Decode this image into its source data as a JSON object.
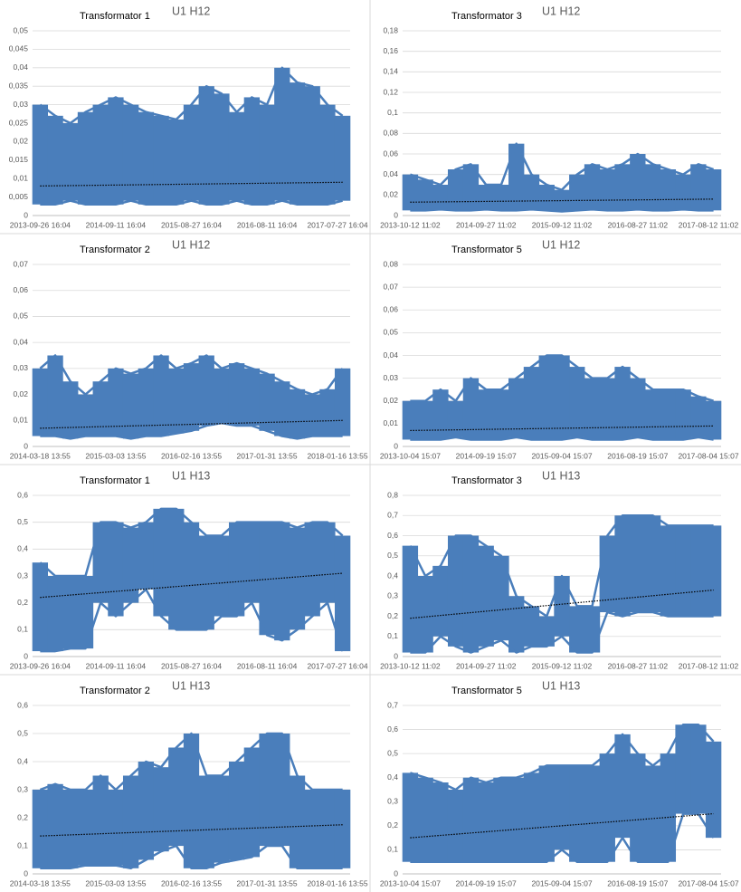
{
  "chart_data": [
    {
      "type": "range",
      "title": "Transformator 1",
      "subtitle": "U1 H12",
      "categories": [
        "2013-09-26 16:04",
        null,
        null,
        null,
        null,
        "2014-09-11 16:04",
        null,
        null,
        null,
        null,
        "2015-08-27 16:04",
        null,
        null,
        null,
        null,
        "2016-08-11 16:04",
        null,
        null,
        null,
        null,
        "2017-07-27 16:04"
      ],
      "series": [
        {
          "color": "#4a7ebb",
          "values": [
            0.03,
            0.027,
            0.025,
            0.028,
            0.03,
            0.032,
            0.03,
            0.028,
            0.027,
            0.026,
            0.03,
            0.035,
            0.033,
            0.028,
            0.032,
            0.03,
            0.04,
            0.036,
            0.035,
            0.03,
            0.027
          ]
        },
        {
          "color": "#4a7ebb",
          "values": [
            0.003,
            0.003,
            0.004,
            0.003,
            0.003,
            0.003,
            0.004,
            0.003,
            0.003,
            0.003,
            0.004,
            0.003,
            0.003,
            0.004,
            0.003,
            0.003,
            0.004,
            0.003,
            0.003,
            0.003,
            0.004
          ]
        }
      ],
      "trend": [
        0.008,
        0.009
      ],
      "ylim": [
        0,
        0.05
      ],
      "yticks": [
        0,
        {
          "value": 0.005,
          "label": "0,005"
        },
        {
          "value": 0.01,
          "label": "0,01"
        },
        {
          "value": 0.015,
          "label": "0,015"
        },
        {
          "value": 0.02,
          "label": "0,02"
        },
        {
          "value": 0.025,
          "label": "0,025"
        },
        {
          "value": 0.03,
          "label": "0,03"
        },
        {
          "value": 0.035,
          "label": "0,035"
        },
        {
          "value": 0.04,
          "label": "0,04"
        },
        {
          "value": 0.045,
          "label": "0,045"
        },
        {
          "value": 0.05,
          "label": "0,05"
        }
      ],
      "grid": true
    },
    {
      "type": "range",
      "title": "Transformator 3",
      "subtitle": "U1 H12",
      "categories": [
        "2013-10-12 11:02",
        null,
        null,
        null,
        null,
        "2014-09-27 11:02",
        null,
        null,
        null,
        null,
        "2015-09-12 11:02",
        null,
        null,
        null,
        null,
        "2016-08-27 11:02",
        null,
        null,
        null,
        null,
        "2017-08-12 11:02"
      ],
      "series": [
        {
          "color": "#4a7ebb",
          "values": [
            0.04,
            0.035,
            0.03,
            0.045,
            0.05,
            0.03,
            0.03,
            0.07,
            0.04,
            0.03,
            0.025,
            0.04,
            0.05,
            0.045,
            0.05,
            0.06,
            0.05,
            0.045,
            0.04,
            0.05,
            0.045
          ]
        },
        {
          "color": "#4a7ebb",
          "values": [
            0.005,
            0.005,
            0.006,
            0.005,
            0.005,
            0.006,
            0.005,
            0.005,
            0.006,
            0.005,
            0.004,
            0.005,
            0.006,
            0.005,
            0.005,
            0.006,
            0.005,
            0.005,
            0.006,
            0.005,
            0.005
          ]
        }
      ],
      "trend": [
        0.013,
        0.016
      ],
      "ylim": [
        0,
        0.18
      ],
      "yticks": [
        0,
        {
          "value": 0.02,
          "label": "0,02"
        },
        {
          "value": 0.04,
          "label": "0,04"
        },
        {
          "value": 0.06,
          "label": "0,06"
        },
        {
          "value": 0.08,
          "label": "0,08"
        },
        {
          "value": 0.1,
          "label": "0,1"
        },
        {
          "value": 0.12,
          "label": "0,12"
        },
        {
          "value": 0.14,
          "label": "0,14"
        },
        {
          "value": 0.16,
          "label": "0,16"
        },
        {
          "value": 0.18,
          "label": "0,18"
        }
      ],
      "grid": true
    },
    {
      "type": "range",
      "title": "Transformator 2",
      "subtitle": "U1 H12",
      "categories": [
        "2014-03-18 13:55",
        null,
        null,
        null,
        null,
        "2015-03-03 13:55",
        null,
        null,
        null,
        null,
        "2016-02-16 13:55",
        null,
        null,
        null,
        null,
        "2017-01-31 13:55",
        null,
        null,
        null,
        null,
        "2018-01-16 13:55"
      ],
      "series": [
        {
          "color": "#4a7ebb",
          "values": [
            0.03,
            0.035,
            0.025,
            0.02,
            0.025,
            0.03,
            0.028,
            0.03,
            0.035,
            0.03,
            0.032,
            0.035,
            0.03,
            0.032,
            0.03,
            0.028,
            0.025,
            0.022,
            0.02,
            0.022,
            0.03
          ]
        },
        {
          "color": "#4a7ebb",
          "values": [
            0.004,
            0.004,
            0.003,
            0.004,
            0.004,
            0.004,
            0.003,
            0.004,
            0.004,
            0.005,
            0.006,
            0.008,
            0.009,
            0.008,
            0.008,
            0.006,
            0.004,
            0.003,
            0.004,
            0.004,
            0.004
          ]
        }
      ],
      "trend": [
        0.007,
        0.01
      ],
      "ylim": [
        0,
        0.07
      ],
      "yticks": [
        0,
        {
          "value": 0.01,
          "label": "0,01"
        },
        {
          "value": 0.02,
          "label": "0,02"
        },
        {
          "value": 0.03,
          "label": "0,03"
        },
        {
          "value": 0.04,
          "label": "0,04"
        },
        {
          "value": 0.05,
          "label": "0,05"
        },
        {
          "value": 0.06,
          "label": "0,06"
        },
        {
          "value": 0.07,
          "label": "0,07"
        }
      ],
      "grid": true
    },
    {
      "type": "range",
      "title": "Transformator 5",
      "subtitle": "U1 H12",
      "categories": [
        "2013-10-04 15:07",
        null,
        null,
        null,
        null,
        "2014-09-19 15:07",
        null,
        null,
        null,
        null,
        "2015-09-04 15:07",
        null,
        null,
        null,
        null,
        "2016-08-19 15:07",
        null,
        null,
        null,
        null,
        "2017-08-04 15:07"
      ],
      "series": [
        {
          "color": "#4a7ebb",
          "values": [
            0.02,
            0.02,
            0.025,
            0.02,
            0.03,
            0.025,
            0.025,
            0.03,
            0.035,
            0.04,
            0.04,
            0.035,
            0.03,
            0.03,
            0.035,
            0.03,
            0.025,
            0.025,
            0.025,
            0.022,
            0.02
          ]
        },
        {
          "color": "#4a7ebb",
          "values": [
            0.003,
            0.003,
            0.003,
            0.004,
            0.003,
            0.003,
            0.003,
            0.004,
            0.003,
            0.003,
            0.003,
            0.004,
            0.003,
            0.003,
            0.003,
            0.004,
            0.003,
            0.003,
            0.003,
            0.004,
            0.003
          ]
        }
      ],
      "trend": [
        0.007,
        0.009
      ],
      "ylim": [
        0,
        0.08
      ],
      "yticks": [
        0,
        {
          "value": 0.01,
          "label": "0,01"
        },
        {
          "value": 0.02,
          "label": "0,02"
        },
        {
          "value": 0.03,
          "label": "0,03"
        },
        {
          "value": 0.04,
          "label": "0,04"
        },
        {
          "value": 0.05,
          "label": "0,05"
        },
        {
          "value": 0.06,
          "label": "0,06"
        },
        {
          "value": 0.07,
          "label": "0,07"
        },
        {
          "value": 0.08,
          "label": "0,08"
        }
      ],
      "grid": true
    },
    {
      "type": "range",
      "title": "Transformator 1",
      "subtitle": "U1 H13",
      "categories": [
        "2013-09-26 16:04",
        null,
        null,
        null,
        null,
        "2014-09-11 16:04",
        null,
        null,
        null,
        null,
        "2015-08-27 16:04",
        null,
        null,
        null,
        null,
        "2016-08-11 16:04",
        null,
        null,
        null,
        null,
        "2017-07-27 16:04"
      ],
      "series": [
        {
          "color": "#4a7ebb",
          "values": [
            0.35,
            0.3,
            0.3,
            0.3,
            0.5,
            0.5,
            0.48,
            0.5,
            0.55,
            0.55,
            0.5,
            0.45,
            0.45,
            0.5,
            0.5,
            0.5,
            0.5,
            0.48,
            0.5,
            0.5,
            0.45
          ]
        },
        {
          "color": "#4a7ebb",
          "values": [
            0.02,
            0.02,
            0.03,
            0.03,
            0.2,
            0.15,
            0.2,
            0.25,
            0.15,
            0.1,
            0.1,
            0.1,
            0.15,
            0.15,
            0.2,
            0.08,
            0.06,
            0.1,
            0.15,
            0.2,
            0.02
          ]
        }
      ],
      "trend": [
        0.22,
        0.31
      ],
      "ylim": [
        0,
        0.6
      ],
      "yticks": [
        0,
        {
          "value": 0.1,
          "label": "0,1"
        },
        {
          "value": 0.2,
          "label": "0,2"
        },
        {
          "value": 0.3,
          "label": "0,3"
        },
        {
          "value": 0.4,
          "label": "0,4"
        },
        {
          "value": 0.5,
          "label": "0,5"
        },
        {
          "value": 0.6,
          "label": "0,6"
        }
      ],
      "grid": true
    },
    {
      "type": "range",
      "title": "Transformator 3",
      "subtitle": "U1 H13",
      "categories": [
        "2013-10-12 11:02",
        null,
        null,
        null,
        null,
        "2014-09-27 11:02",
        null,
        null,
        null,
        null,
        "2015-09-12 11:02",
        null,
        null,
        null,
        null,
        "2016-08-27 11:02",
        null,
        null,
        null,
        null,
        "2017-08-12 11:02"
      ],
      "series": [
        {
          "color": "#4a7ebb",
          "values": [
            0.55,
            0.4,
            0.45,
            0.6,
            0.6,
            0.55,
            0.5,
            0.3,
            0.25,
            0.2,
            0.4,
            0.25,
            0.25,
            0.6,
            0.7,
            0.7,
            0.7,
            0.65,
            0.65,
            0.65,
            0.65
          ]
        },
        {
          "color": "#4a7ebb",
          "values": [
            0.02,
            0.02,
            0.1,
            0.05,
            0.02,
            0.05,
            0.08,
            0.02,
            0.05,
            0.05,
            0.1,
            0.02,
            0.02,
            0.22,
            0.2,
            0.22,
            0.22,
            0.2,
            0.2,
            0.2,
            0.2
          ]
        }
      ],
      "trend": [
        0.19,
        0.33
      ],
      "ylim": [
        0,
        0.8
      ],
      "yticks": [
        0,
        {
          "value": 0.1,
          "label": "0,1"
        },
        {
          "value": 0.2,
          "label": "0,2"
        },
        {
          "value": 0.3,
          "label": "0,3"
        },
        {
          "value": 0.4,
          "label": "0,4"
        },
        {
          "value": 0.5,
          "label": "0,5"
        },
        {
          "value": 0.6,
          "label": "0,6"
        },
        {
          "value": 0.7,
          "label": "0,7"
        },
        {
          "value": 0.8,
          "label": "0,8"
        }
      ],
      "grid": true
    },
    {
      "type": "range",
      "title": "Transformator 2",
      "subtitle": "U1 H13",
      "categories": [
        "2014-03-18 13:55",
        null,
        null,
        null,
        null,
        "2015-03-03 13:55",
        null,
        null,
        null,
        null,
        "2016-02-16 13:55",
        null,
        null,
        null,
        null,
        "2017-01-31 13:55",
        null,
        null,
        null,
        null,
        "2018-01-16 13:55"
      ],
      "series": [
        {
          "color": "#4a7ebb",
          "values": [
            0.3,
            0.32,
            0.3,
            0.3,
            0.35,
            0.3,
            0.35,
            0.4,
            0.38,
            0.45,
            0.5,
            0.35,
            0.35,
            0.4,
            0.45,
            0.5,
            0.5,
            0.35,
            0.3,
            0.3,
            0.3
          ]
        },
        {
          "color": "#4a7ebb",
          "values": [
            0.02,
            0.02,
            0.02,
            0.03,
            0.03,
            0.03,
            0.02,
            0.05,
            0.08,
            0.1,
            0.02,
            0.02,
            0.04,
            0.05,
            0.06,
            0.1,
            0.1,
            0.02,
            0.02,
            0.02,
            0.02
          ]
        }
      ],
      "trend": [
        0.135,
        0.175
      ],
      "ylim": [
        0,
        0.6
      ],
      "yticks": [
        0,
        {
          "value": 0.1,
          "label": "0,1"
        },
        {
          "value": 0.2,
          "label": "0,2"
        },
        {
          "value": 0.3,
          "label": "0,3"
        },
        {
          "value": 0.4,
          "label": "0,4"
        },
        {
          "value": 0.5,
          "label": "0,5"
        },
        {
          "value": 0.6,
          "label": "0,6"
        }
      ],
      "grid": true
    },
    {
      "type": "range",
      "title": "Transformator 5",
      "subtitle": "U1 H13",
      "categories": [
        "2013-10-04 15:07",
        null,
        null,
        null,
        null,
        "2014-09-19 15:07",
        null,
        null,
        null,
        null,
        "2015-09-04 15:07",
        null,
        null,
        null,
        null,
        "2016-08-19 15:07",
        null,
        null,
        null,
        null,
        "2017-08-04 15:07"
      ],
      "series": [
        {
          "color": "#4a7ebb",
          "values": [
            0.42,
            0.4,
            0.38,
            0.35,
            0.4,
            0.38,
            0.4,
            0.4,
            0.42,
            0.45,
            0.45,
            0.45,
            0.45,
            0.5,
            0.58,
            0.5,
            0.45,
            0.5,
            0.62,
            0.62,
            0.55
          ]
        },
        {
          "color": "#4a7ebb",
          "values": [
            0.05,
            0.05,
            0.05,
            0.05,
            0.05,
            0.05,
            0.05,
            0.05,
            0.05,
            0.05,
            0.1,
            0.05,
            0.05,
            0.05,
            0.15,
            0.05,
            0.05,
            0.05,
            0.25,
            0.25,
            0.15
          ]
        }
      ],
      "trend": [
        0.15,
        0.25
      ],
      "ylim": [
        0,
        0.7
      ],
      "yticks": [
        0,
        {
          "value": 0.1,
          "label": "0,1"
        },
        {
          "value": 0.2,
          "label": "0,2"
        },
        {
          "value": 0.3,
          "label": "0,3"
        },
        {
          "value": 0.4,
          "label": "0,4"
        },
        {
          "value": 0.5,
          "label": "0,5"
        },
        {
          "value": 0.6,
          "label": "0,6"
        },
        {
          "value": 0.7,
          "label": "0,7"
        }
      ],
      "grid": true
    }
  ]
}
